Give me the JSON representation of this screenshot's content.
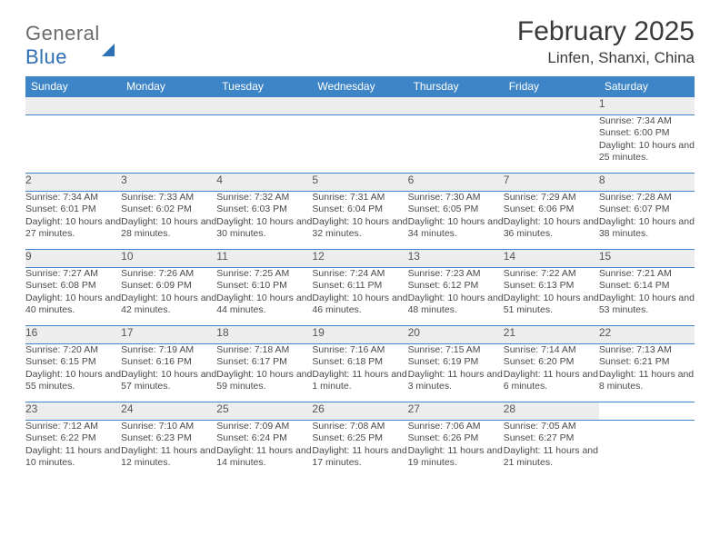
{
  "logo": {
    "part1": "General",
    "part2": "Blue"
  },
  "title": "February 2025",
  "location": "Linfen, Shanxi, China",
  "colors": {
    "header_bg": "#3d85c6",
    "header_fg": "#ffffff",
    "daynum_bg": "#ededed",
    "border": "#3d85c6",
    "text": "#4a4a4a",
    "logo_gray": "#6b6b6b",
    "logo_blue": "#2f6fb3"
  },
  "day_headers": [
    "Sunday",
    "Monday",
    "Tuesday",
    "Wednesday",
    "Thursday",
    "Friday",
    "Saturday"
  ],
  "weeks": [
    [
      null,
      null,
      null,
      null,
      null,
      null,
      {
        "n": "1",
        "sunrise": "7:34 AM",
        "sunset": "6:00 PM",
        "daylight": "10 hours and 25 minutes."
      }
    ],
    [
      {
        "n": "2",
        "sunrise": "7:34 AM",
        "sunset": "6:01 PM",
        "daylight": "10 hours and 27 minutes."
      },
      {
        "n": "3",
        "sunrise": "7:33 AM",
        "sunset": "6:02 PM",
        "daylight": "10 hours and 28 minutes."
      },
      {
        "n": "4",
        "sunrise": "7:32 AM",
        "sunset": "6:03 PM",
        "daylight": "10 hours and 30 minutes."
      },
      {
        "n": "5",
        "sunrise": "7:31 AM",
        "sunset": "6:04 PM",
        "daylight": "10 hours and 32 minutes."
      },
      {
        "n": "6",
        "sunrise": "7:30 AM",
        "sunset": "6:05 PM",
        "daylight": "10 hours and 34 minutes."
      },
      {
        "n": "7",
        "sunrise": "7:29 AM",
        "sunset": "6:06 PM",
        "daylight": "10 hours and 36 minutes."
      },
      {
        "n": "8",
        "sunrise": "7:28 AM",
        "sunset": "6:07 PM",
        "daylight": "10 hours and 38 minutes."
      }
    ],
    [
      {
        "n": "9",
        "sunrise": "7:27 AM",
        "sunset": "6:08 PM",
        "daylight": "10 hours and 40 minutes."
      },
      {
        "n": "10",
        "sunrise": "7:26 AM",
        "sunset": "6:09 PM",
        "daylight": "10 hours and 42 minutes."
      },
      {
        "n": "11",
        "sunrise": "7:25 AM",
        "sunset": "6:10 PM",
        "daylight": "10 hours and 44 minutes."
      },
      {
        "n": "12",
        "sunrise": "7:24 AM",
        "sunset": "6:11 PM",
        "daylight": "10 hours and 46 minutes."
      },
      {
        "n": "13",
        "sunrise": "7:23 AM",
        "sunset": "6:12 PM",
        "daylight": "10 hours and 48 minutes."
      },
      {
        "n": "14",
        "sunrise": "7:22 AM",
        "sunset": "6:13 PM",
        "daylight": "10 hours and 51 minutes."
      },
      {
        "n": "15",
        "sunrise": "7:21 AM",
        "sunset": "6:14 PM",
        "daylight": "10 hours and 53 minutes."
      }
    ],
    [
      {
        "n": "16",
        "sunrise": "7:20 AM",
        "sunset": "6:15 PM",
        "daylight": "10 hours and 55 minutes."
      },
      {
        "n": "17",
        "sunrise": "7:19 AM",
        "sunset": "6:16 PM",
        "daylight": "10 hours and 57 minutes."
      },
      {
        "n": "18",
        "sunrise": "7:18 AM",
        "sunset": "6:17 PM",
        "daylight": "10 hours and 59 minutes."
      },
      {
        "n": "19",
        "sunrise": "7:16 AM",
        "sunset": "6:18 PM",
        "daylight": "11 hours and 1 minute."
      },
      {
        "n": "20",
        "sunrise": "7:15 AM",
        "sunset": "6:19 PM",
        "daylight": "11 hours and 3 minutes."
      },
      {
        "n": "21",
        "sunrise": "7:14 AM",
        "sunset": "6:20 PM",
        "daylight": "11 hours and 6 minutes."
      },
      {
        "n": "22",
        "sunrise": "7:13 AM",
        "sunset": "6:21 PM",
        "daylight": "11 hours and 8 minutes."
      }
    ],
    [
      {
        "n": "23",
        "sunrise": "7:12 AM",
        "sunset": "6:22 PM",
        "daylight": "11 hours and 10 minutes."
      },
      {
        "n": "24",
        "sunrise": "7:10 AM",
        "sunset": "6:23 PM",
        "daylight": "11 hours and 12 minutes."
      },
      {
        "n": "25",
        "sunrise": "7:09 AM",
        "sunset": "6:24 PM",
        "daylight": "11 hours and 14 minutes."
      },
      {
        "n": "26",
        "sunrise": "7:08 AM",
        "sunset": "6:25 PM",
        "daylight": "11 hours and 17 minutes."
      },
      {
        "n": "27",
        "sunrise": "7:06 AM",
        "sunset": "6:26 PM",
        "daylight": "11 hours and 19 minutes."
      },
      {
        "n": "28",
        "sunrise": "7:05 AM",
        "sunset": "6:27 PM",
        "daylight": "11 hours and 21 minutes."
      },
      null
    ]
  ],
  "labels": {
    "sunrise": "Sunrise:",
    "sunset": "Sunset:",
    "daylight": "Daylight:"
  }
}
